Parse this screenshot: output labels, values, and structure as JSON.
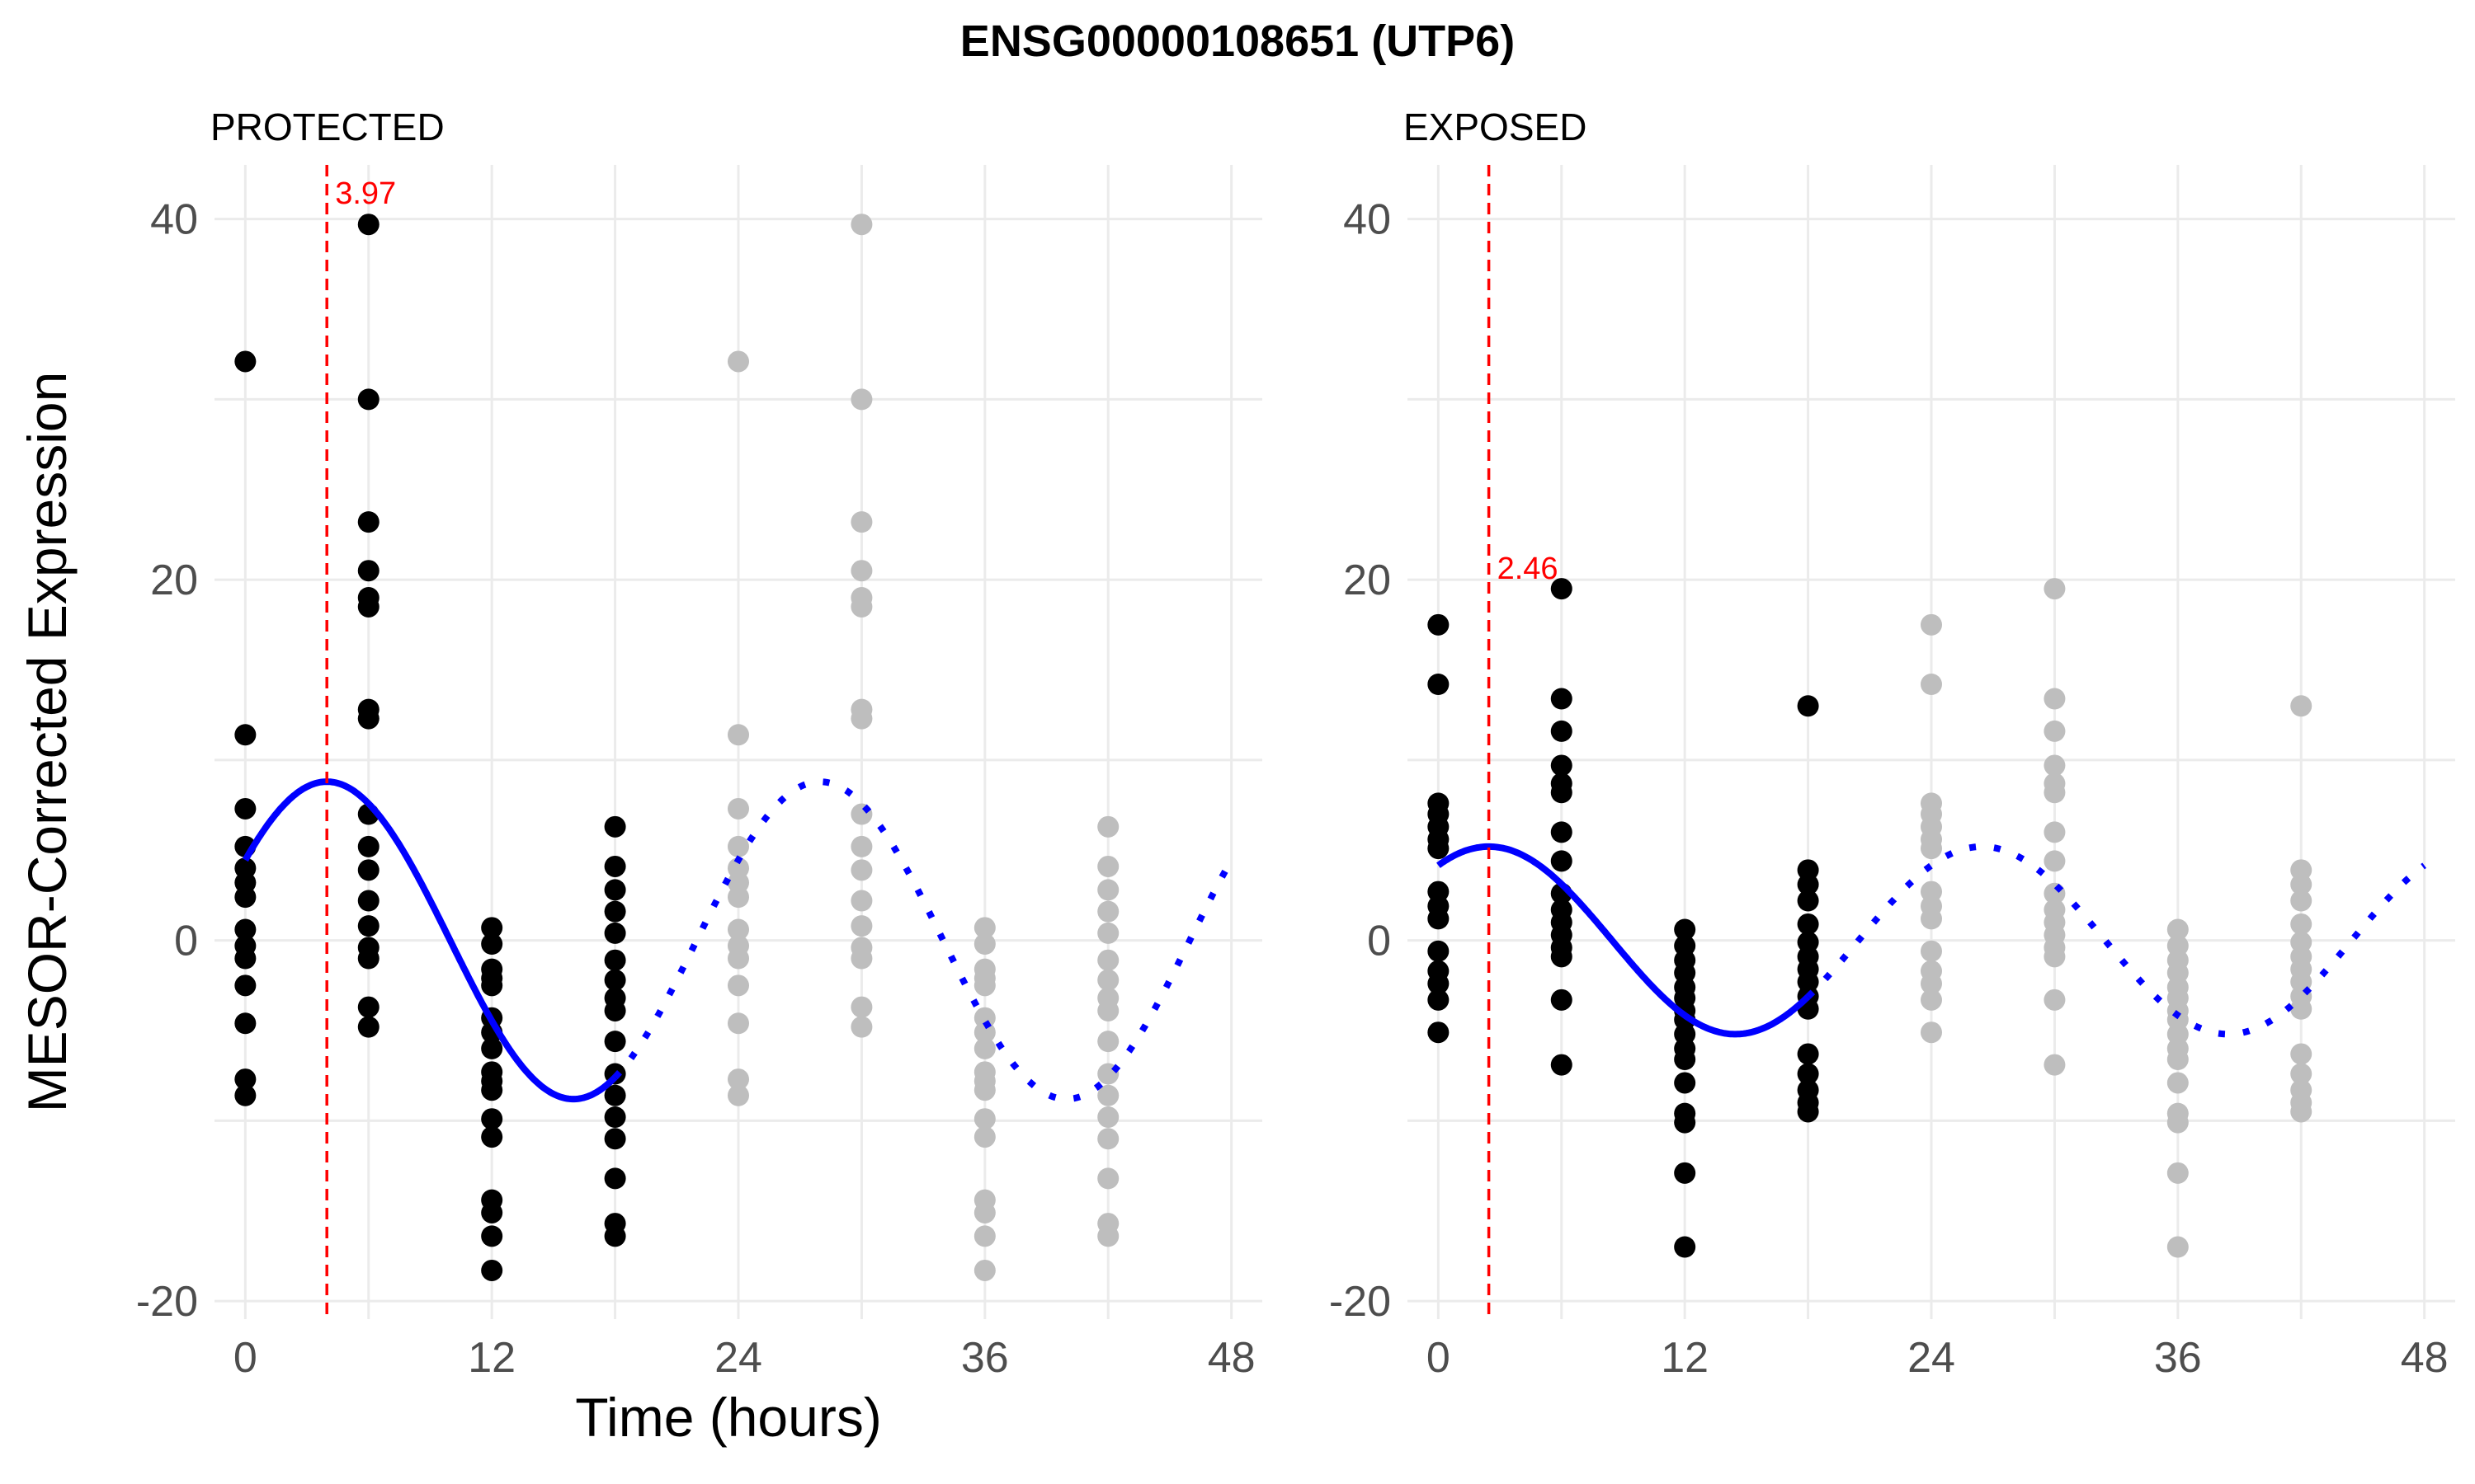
{
  "chart_data": {
    "title": "ENSG00000108651 (UTP6)",
    "xlabel": "Time (hours)",
    "ylabel": "MESOR-Corrected Expression",
    "xlim": [
      -1.5,
      49.5
    ],
    "ylim": [
      -21,
      43
    ],
    "x_ticks": [
      0,
      12,
      24,
      36,
      48
    ],
    "y_ticks": [
      -20,
      0,
      20,
      40
    ],
    "x_tick_labels": [
      "0",
      "12",
      "24",
      "36",
      "48"
    ],
    "y_tick_labels": [
      "-20",
      "0",
      "20",
      "40"
    ],
    "grid": true,
    "colors": {
      "observed": "#000000",
      "replicated": "#bebebe",
      "fit": "#0000ff",
      "acrophase": "#ff0000"
    },
    "panels": [
      {
        "type": "scatter",
        "label": "PROTECTED",
        "acrophase": 3.97,
        "acrophase_label": "3.97",
        "fit": {
          "mesor": 0,
          "amplitude": 8.8,
          "period": 24,
          "acrophase": 3.97,
          "solid_range": [
            0,
            18
          ],
          "dotted_range": [
            18,
            48
          ]
        },
        "points": [
          {
            "x": 0,
            "y": [
              32.1,
              11.4,
              7.3,
              5.2,
              4.0,
              3.2,
              2.4,
              0.6,
              -0.3,
              -1.0,
              -2.5,
              -4.6,
              -7.7,
              -8.6
            ]
          },
          {
            "x": 6,
            "y": [
              39.7,
              30.0,
              23.2,
              20.5,
              19.0,
              18.5,
              12.8,
              12.3,
              7.0,
              5.2,
              3.9,
              2.2,
              0.8,
              -0.4,
              -1.0,
              -3.7,
              -4.8
            ]
          },
          {
            "x": 12,
            "y": [
              0.7,
              -0.2,
              -1.6,
              -2.1,
              -2.5,
              -4.3,
              -5.1,
              -6.0,
              -7.3,
              -7.8,
              -8.3,
              -9.9,
              -10.9,
              -14.4,
              -15.1,
              -16.4,
              -18.3
            ]
          },
          {
            "x": 18,
            "y": [
              6.3,
              4.1,
              2.8,
              1.6,
              0.4,
              -1.1,
              -2.2,
              -3.2,
              -3.9,
              -5.6,
              -7.4,
              -8.6,
              -9.8,
              -11.0,
              -13.2,
              -15.7,
              -16.4
            ]
          }
        ]
      },
      {
        "type": "scatter",
        "label": "EXPOSED",
        "acrophase": 2.46,
        "acrophase_label": "2.46",
        "fit": {
          "mesor": 0,
          "amplitude": 5.2,
          "period": 24,
          "acrophase": 2.46,
          "solid_range": [
            0,
            18
          ],
          "dotted_range": [
            18,
            48
          ]
        },
        "points": [
          {
            "x": 0,
            "y": [
              17.5,
              14.2,
              7.6,
              7.0,
              6.3,
              5.6,
              5.1,
              2.7,
              1.9,
              1.2,
              -0.6,
              -1.7,
              -2.4,
              -3.3,
              -5.1
            ]
          },
          {
            "x": 6,
            "y": [
              19.5,
              13.4,
              11.6,
              9.7,
              8.7,
              8.2,
              6.0,
              4.4,
              2.6,
              1.7,
              1.0,
              0.3,
              -0.4,
              -0.9,
              -3.3,
              -6.9
            ]
          },
          {
            "x": 12,
            "y": [
              0.6,
              -0.3,
              -1.1,
              -1.8,
              -2.6,
              -3.2,
              -3.9,
              -4.4,
              -5.2,
              -6.0,
              -6.6,
              -7.9,
              -9.6,
              -10.1,
              -12.9,
              -17.0
            ]
          },
          {
            "x": 18,
            "y": [
              13.0,
              3.9,
              3.1,
              2.2,
              0.9,
              -0.1,
              -0.9,
              -1.6,
              -2.3,
              -3.1,
              -3.8,
              -6.3,
              -7.4,
              -8.3,
              -9.0,
              -9.5
            ]
          }
        ]
      }
    ]
  }
}
